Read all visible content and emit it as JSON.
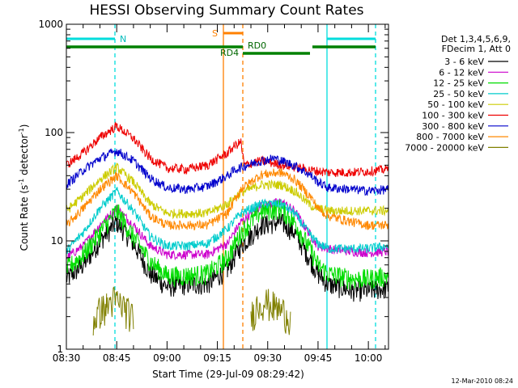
{
  "chart_data": {
    "type": "line",
    "title": "HESSI Observing Summary Count Rates",
    "xlabel": "Start Time (29-Jul-09 08:29:42)",
    "ylabel_main": "Count Rate (s",
    "ylabel_sup1": "-1",
    "ylabel_mid": " detector",
    "ylabel_sup2": "-1",
    "ylabel_end": ")",
    "y_scale": "log",
    "ylim": [
      1,
      1000
    ],
    "xlim_minutes": [
      0,
      96
    ],
    "y_ticks": [
      {
        "value": 1,
        "label": "1"
      },
      {
        "value": 10,
        "label": "10"
      },
      {
        "value": 100,
        "label": "100"
      },
      {
        "value": 1000,
        "label": "1000"
      }
    ],
    "x_ticks": [
      {
        "minute": 0,
        "label": "08:30"
      },
      {
        "minute": 15,
        "label": "08:45"
      },
      {
        "minute": 30,
        "label": "09:00"
      },
      {
        "minute": 45,
        "label": "09:15"
      },
      {
        "minute": 60,
        "label": "09:30"
      },
      {
        "minute": 75,
        "label": "09:45"
      },
      {
        "minute": 90,
        "label": "10:00"
      }
    ],
    "legend_header": [
      "Det 1,3,4,5,6,9,",
      "FDecim 1, Att 0"
    ],
    "legend_placement": "right",
    "series": [
      {
        "name": "3 - 6 keV",
        "color": "#000000",
        "points": [
          [
            0,
            4.5
          ],
          [
            5,
            6
          ],
          [
            10,
            10
          ],
          [
            15,
            15
          ],
          [
            20,
            9.5
          ],
          [
            25,
            5
          ],
          [
            30,
            3.8
          ],
          [
            36,
            4
          ],
          [
            42,
            4
          ],
          [
            48,
            5.5
          ],
          [
            52,
            9
          ],
          [
            58,
            14
          ],
          [
            64,
            15
          ],
          [
            68,
            12
          ],
          [
            73,
            6.5
          ],
          [
            75,
            5
          ],
          [
            78,
            4
          ],
          [
            85,
            3.5
          ],
          [
            90,
            3.5
          ],
          [
            96,
            3.7
          ]
        ]
      },
      {
        "name": "6 - 12 keV",
        "color": "#cc00cc",
        "points": [
          [
            0,
            7
          ],
          [
            5,
            9
          ],
          [
            10,
            14
          ],
          [
            15,
            20
          ],
          [
            20,
            14
          ],
          [
            25,
            9
          ],
          [
            30,
            7.5
          ],
          [
            36,
            7.5
          ],
          [
            42,
            7.5
          ],
          [
            48,
            9.5
          ],
          [
            52,
            15
          ],
          [
            58,
            21
          ],
          [
            64,
            23
          ],
          [
            68,
            19
          ],
          [
            73,
            11
          ],
          [
            75,
            9
          ],
          [
            78,
            8.5
          ],
          [
            85,
            8
          ],
          [
            90,
            7.8
          ],
          [
            96,
            8
          ]
        ]
      },
      {
        "name": "12 - 25 keV",
        "color": "#00dd00",
        "points": [
          [
            0,
            5.5
          ],
          [
            5,
            7.5
          ],
          [
            10,
            12
          ],
          [
            15,
            19
          ],
          [
            20,
            11
          ],
          [
            25,
            6.5
          ],
          [
            30,
            4.8
          ],
          [
            36,
            4.8
          ],
          [
            42,
            5
          ],
          [
            48,
            7
          ],
          [
            52,
            12
          ],
          [
            58,
            19
          ],
          [
            64,
            20
          ],
          [
            68,
            15
          ],
          [
            73,
            8
          ],
          [
            75,
            6
          ],
          [
            78,
            5
          ],
          [
            85,
            4.5
          ],
          [
            90,
            4.5
          ],
          [
            96,
            4.8
          ]
        ]
      },
      {
        "name": "25 - 50 keV",
        "color": "#00cccc",
        "points": [
          [
            0,
            8
          ],
          [
            5,
            12
          ],
          [
            10,
            20
          ],
          [
            15,
            29
          ],
          [
            20,
            19
          ],
          [
            25,
            11
          ],
          [
            30,
            9
          ],
          [
            36,
            9
          ],
          [
            42,
            9.5
          ],
          [
            48,
            13
          ],
          [
            52,
            18
          ],
          [
            58,
            22
          ],
          [
            64,
            22
          ],
          [
            68,
            18
          ],
          [
            73,
            11
          ],
          [
            75,
            9.5
          ],
          [
            78,
            8.5
          ],
          [
            85,
            8.5
          ],
          [
            90,
            8.5
          ],
          [
            96,
            9
          ]
        ]
      },
      {
        "name": "50 - 100 keV",
        "color": "#cccc00",
        "points": [
          [
            0,
            19
          ],
          [
            5,
            26
          ],
          [
            10,
            37
          ],
          [
            15,
            48
          ],
          [
            20,
            35
          ],
          [
            25,
            22
          ],
          [
            30,
            18
          ],
          [
            36,
            18
          ],
          [
            42,
            18
          ],
          [
            48,
            22
          ],
          [
            52,
            28
          ],
          [
            58,
            33
          ],
          [
            64,
            33
          ],
          [
            68,
            29
          ],
          [
            73,
            21
          ],
          [
            75,
            20
          ],
          [
            78,
            19
          ],
          [
            85,
            19
          ],
          [
            90,
            19
          ],
          [
            96,
            19
          ]
        ]
      },
      {
        "name": "100 - 300 keV",
        "color": "#ee0000",
        "points": [
          [
            0,
            50
          ],
          [
            5,
            65
          ],
          [
            10,
            90
          ],
          [
            15,
            115
          ],
          [
            20,
            88
          ],
          [
            25,
            58
          ],
          [
            30,
            47
          ],
          [
            36,
            46
          ],
          [
            42,
            50
          ],
          [
            48,
            65
          ],
          [
            50,
            75
          ],
          [
            52,
            82
          ],
          [
            53,
            50
          ],
          [
            58,
            55
          ],
          [
            62,
            52
          ],
          [
            68,
            48
          ],
          [
            73,
            45
          ],
          [
            75,
            44
          ],
          [
            78,
            43
          ],
          [
            85,
            43
          ],
          [
            90,
            44
          ],
          [
            96,
            46
          ]
        ]
      },
      {
        "name": "300 - 800 keV",
        "color": "#0000cc",
        "points": [
          [
            0,
            33
          ],
          [
            5,
            45
          ],
          [
            10,
            58
          ],
          [
            15,
            68
          ],
          [
            20,
            55
          ],
          [
            25,
            38
          ],
          [
            30,
            31
          ],
          [
            36,
            30
          ],
          [
            42,
            32
          ],
          [
            48,
            40
          ],
          [
            50,
            45
          ],
          [
            52,
            48
          ],
          [
            58,
            55
          ],
          [
            62,
            58
          ],
          [
            64,
            55
          ],
          [
            68,
            50
          ],
          [
            73,
            40
          ],
          [
            75,
            35
          ],
          [
            78,
            31
          ],
          [
            85,
            30
          ],
          [
            90,
            29
          ],
          [
            96,
            30
          ]
        ]
      },
      {
        "name": "800 - 7000 keV",
        "color": "#ff8800",
        "points": [
          [
            0,
            14
          ],
          [
            5,
            20
          ],
          [
            10,
            30
          ],
          [
            15,
            40
          ],
          [
            20,
            28
          ],
          [
            25,
            17
          ],
          [
            30,
            14
          ],
          [
            36,
            14
          ],
          [
            42,
            14
          ],
          [
            48,
            18
          ],
          [
            52,
            30
          ],
          [
            58,
            41
          ],
          [
            64,
            43
          ],
          [
            68,
            37
          ],
          [
            73,
            25
          ],
          [
            75,
            20
          ],
          [
            78,
            17
          ],
          [
            85,
            15
          ],
          [
            90,
            14
          ],
          [
            96,
            14
          ]
        ]
      },
      {
        "name": "7000 - 20000 keV",
        "color": "#808000",
        "points": [
          [
            8,
            1.8
          ],
          [
            10,
            2.3
          ],
          [
            12,
            2.5
          ],
          [
            14,
            2.9
          ],
          [
            16,
            2.7
          ],
          [
            18,
            2.3
          ],
          [
            20,
            1.9
          ],
          [
            55,
            2.0
          ],
          [
            57,
            2.6
          ],
          [
            59,
            2.8
          ],
          [
            61,
            2.6
          ],
          [
            63,
            2.4
          ],
          [
            65,
            2.2
          ],
          [
            67,
            1.9
          ]
        ]
      }
    ],
    "annotations": {
      "text_N": "N",
      "text_S": "S",
      "text_RD4": "RD4",
      "text_RD0": "RD0",
      "color_N": "#00dddd",
      "color_S": "#ff8000",
      "color_RD": "#008000"
    }
  },
  "footer": {
    "date_stamp": "12-Mar-2010 08:24"
  }
}
